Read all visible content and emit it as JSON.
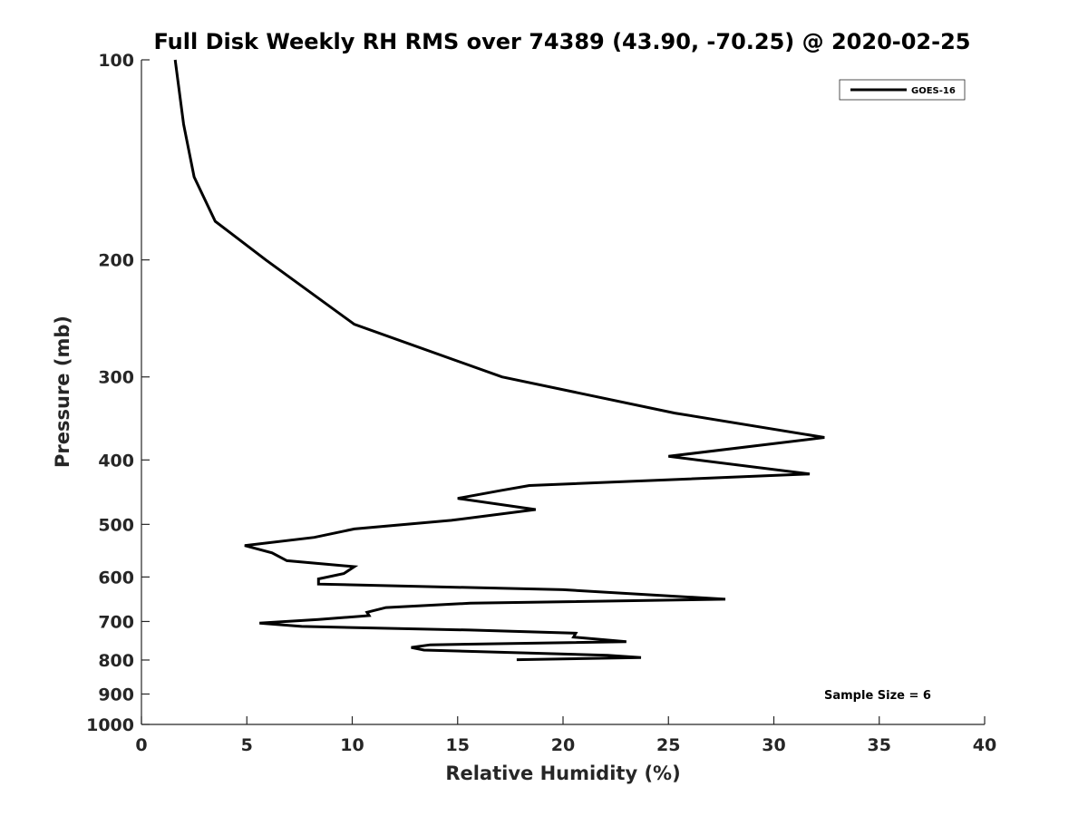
{
  "chart_data": {
    "type": "line",
    "title": "Full Disk Weekly RH RMS over 74389 (43.90, -70.25) @ 2020-02-25",
    "xlabel": "Relative Humidity (%)",
    "ylabel": "Pressure (mb)",
    "xlim": [
      0,
      40
    ],
    "ylim": [
      100,
      1000
    ],
    "yscale": "log",
    "y_reversed": true,
    "x_ticks": [
      0,
      5,
      10,
      15,
      20,
      25,
      30,
      35,
      40
    ],
    "x_tick_labels": [
      "0",
      "5",
      "10",
      "15",
      "20",
      "25",
      "30",
      "35",
      "40"
    ],
    "y_ticks": [
      100,
      200,
      300,
      400,
      500,
      600,
      700,
      800,
      900,
      1000
    ],
    "y_tick_labels": [
      "100",
      "200",
      "300",
      "400",
      "500",
      "600",
      "700",
      "800",
      "900",
      "1000"
    ],
    "grid": false,
    "legend_position": "top-right",
    "annotation": "Sample Size = 6",
    "series": [
      {
        "name": "GOES-16",
        "color": "#000000",
        "points": [
          [
            1.6,
            100
          ],
          [
            2.0,
            125
          ],
          [
            2.5,
            150
          ],
          [
            3.5,
            175
          ],
          [
            5.9,
            200
          ],
          [
            10.1,
            250
          ],
          [
            17.1,
            300
          ],
          [
            25.3,
            340
          ],
          [
            32.4,
            370
          ],
          [
            25.0,
            395
          ],
          [
            31.7,
            420
          ],
          [
            18.4,
            437
          ],
          [
            17.0,
            445
          ],
          [
            15.0,
            457
          ],
          [
            18.7,
            475
          ],
          [
            14.7,
            493
          ],
          [
            10.1,
            508
          ],
          [
            8.2,
            523
          ],
          [
            4.9,
            538
          ],
          [
            6.2,
            552
          ],
          [
            6.9,
            567
          ],
          [
            10.1,
            579
          ],
          [
            9.6,
            593
          ],
          [
            8.4,
            604
          ],
          [
            8.4,
            615
          ],
          [
            20.0,
            627
          ],
          [
            27.7,
            648
          ],
          [
            15.6,
            657
          ],
          [
            11.6,
            667
          ],
          [
            10.7,
            678
          ],
          [
            10.8,
            686
          ],
          [
            8.4,
            695
          ],
          [
            5.6,
            704
          ],
          [
            7.6,
            712
          ],
          [
            15.6,
            721
          ],
          [
            20.6,
            729
          ],
          [
            20.5,
            739
          ],
          [
            23.0,
            751
          ],
          [
            13.7,
            759
          ],
          [
            12.8,
            766
          ],
          [
            13.4,
            773
          ],
          [
            22.1,
            787
          ],
          [
            23.7,
            793
          ],
          [
            17.8,
            799
          ]
        ]
      }
    ]
  }
}
